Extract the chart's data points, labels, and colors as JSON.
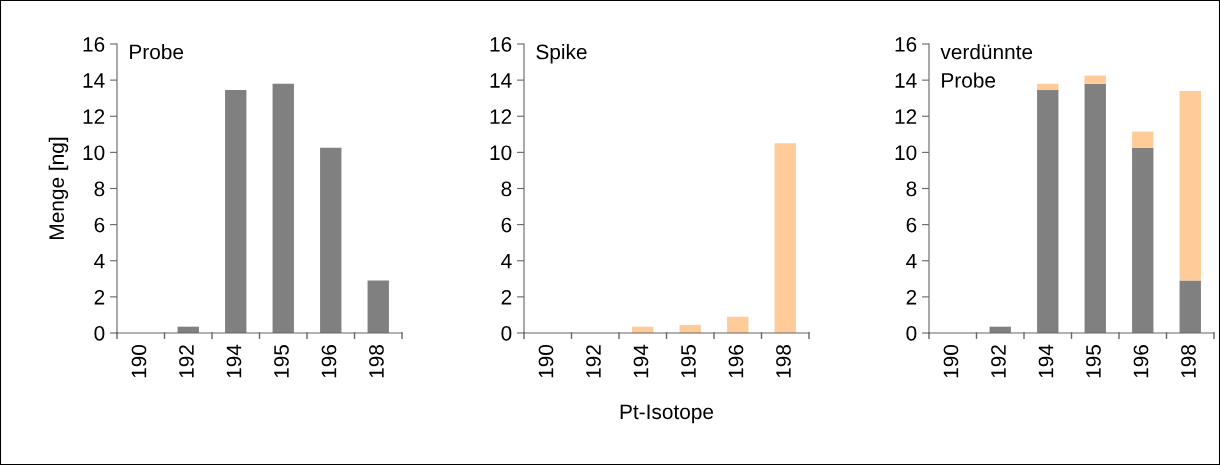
{
  "chart_data": [
    {
      "type": "bar",
      "title": "Probe",
      "ylabel": "Menge [ng]",
      "categories": [
        "190",
        "192",
        "194",
        "195",
        "196",
        "198"
      ],
      "ylim": [
        0,
        16
      ],
      "yticks": [
        0,
        2,
        4,
        6,
        8,
        10,
        12,
        14,
        16
      ],
      "grid": false,
      "legend": false,
      "series": [
        {
          "color": "#808080",
          "values": [
            0,
            0.35,
            13.45,
            13.8,
            10.25,
            2.9
          ]
        }
      ]
    },
    {
      "type": "bar",
      "title": "Spike",
      "xlabel": "Pt-Isotope",
      "categories": [
        "190",
        "192",
        "194",
        "195",
        "196",
        "198"
      ],
      "ylim": [
        0,
        16
      ],
      "yticks": [
        0,
        2,
        4,
        6,
        8,
        10,
        12,
        14,
        16
      ],
      "grid": false,
      "legend": false,
      "series": [
        {
          "color": "#ffcc99",
          "values": [
            0,
            0,
            0.35,
            0.45,
            0.9,
            10.5
          ]
        }
      ]
    },
    {
      "type": "bar",
      "title": "verdünnte\nProbe",
      "stacked": true,
      "categories": [
        "190",
        "192",
        "194",
        "195",
        "196",
        "198"
      ],
      "ylim": [
        0,
        16
      ],
      "yticks": [
        0,
        2,
        4,
        6,
        8,
        10,
        12,
        14,
        16
      ],
      "grid": false,
      "legend": false,
      "series": [
        {
          "color": "#808080",
          "values": [
            0,
            0.35,
            13.45,
            13.8,
            10.25,
            2.9
          ]
        },
        {
          "color": "#ffcc99",
          "values": [
            0,
            0,
            0.35,
            0.45,
            0.9,
            10.5
          ]
        }
      ]
    }
  ]
}
